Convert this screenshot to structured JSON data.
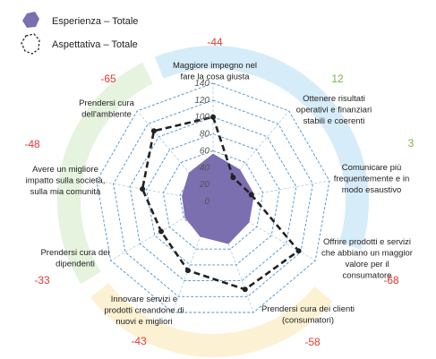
{
  "chart_data": {
    "type": "radar",
    "categories": [
      [
        "Maggiore impegno nel",
        "fare la cosa giusta"
      ],
      [
        "Ottenere risultati",
        "operativi e finanziari",
        "stabili e coerenti"
      ],
      [
        "Comunicare più",
        "frequentemente e in",
        "modo esaustivo"
      ],
      [
        "Offrire prodotti e servizi",
        "che abbiano un maggior",
        "valore per il",
        "consumatore"
      ],
      [
        "Prendersi cura dei clienti",
        "(consumatori)"
      ],
      [
        "Innovare servizi e",
        "prodotti creandone di",
        "nuovi e migliori"
      ],
      [
        "Prendersi cura dei",
        "dipendenti"
      ],
      [
        "Avere un migliore",
        "impatto sulla società,",
        "sulla mia comunità"
      ],
      [
        "Prendersi cura",
        "dell'ambiente"
      ]
    ],
    "series": [
      {
        "name": "Esperienza – Totale",
        "color": "#7b6fb0",
        "values": [
          56,
          49,
          49,
          49,
          53,
          44,
          38,
          37,
          44
        ]
      },
      {
        "name": "Aspettativa – Totale",
        "color": "#222222",
        "values": [
          100,
          37,
          46,
          117,
          111,
          87,
          71,
          85,
          109
        ]
      }
    ],
    "gaps": [
      {
        "label": "-44",
        "color": "#e53935"
      },
      {
        "label": "12",
        "color": "#7cb342"
      },
      {
        "label": "3",
        "color": "#7cb342"
      },
      {
        "label": "-68",
        "color": "#e53935"
      },
      {
        "label": "-58",
        "color": "#e53935"
      },
      {
        "label": "-43",
        "color": "#e53935"
      },
      {
        "label": "-33",
        "color": "#e53935"
      },
      {
        "label": "-48",
        "color": "#e53935"
      },
      {
        "label": "-65",
        "color": "#e53935"
      }
    ],
    "ticks": [
      "0",
      "20",
      "40",
      "60",
      "80",
      "100",
      "120",
      "140"
    ],
    "ylim": [
      0,
      140
    ],
    "grid": true,
    "gridline_color": "#4a90c8",
    "legend_position": "top-left",
    "band_colors": {
      "blue": "#d6ecf8",
      "green": "#e5f3df",
      "yellow": "#fcf1d2"
    }
  }
}
